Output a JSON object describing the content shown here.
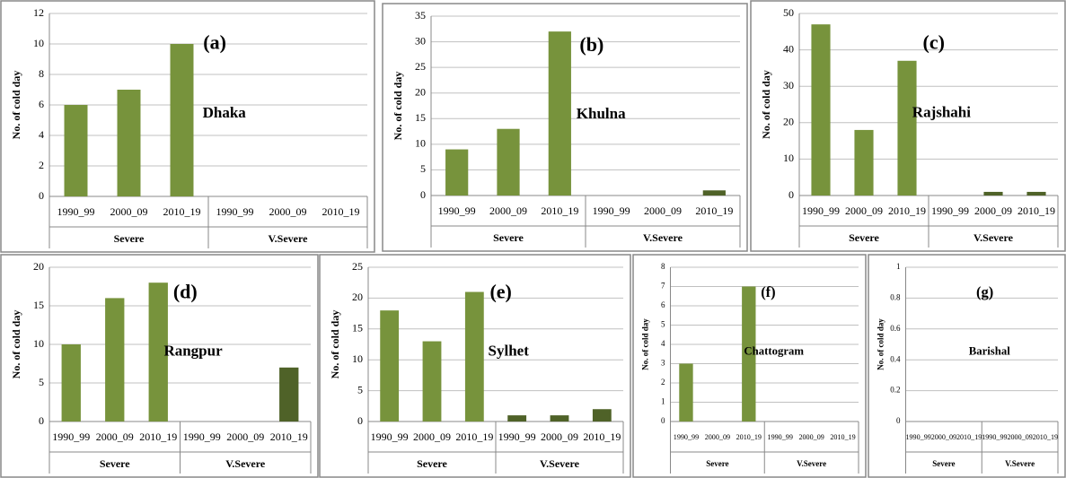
{
  "chart_data": [
    {
      "type": "bar",
      "label": "(a)",
      "region": "Dhaka",
      "y_label": "No. of cold day",
      "categories": [
        "1990_99",
        "2000_09",
        "2010_19",
        "1990_99",
        "2000_09",
        "2010_19"
      ],
      "groups": [
        "Severe",
        "V.Severe"
      ],
      "values": [
        6,
        7,
        10,
        0,
        0,
        0
      ],
      "colors": [
        "#77933c",
        "#4f6228"
      ],
      "ylim": [
        0,
        12
      ],
      "yticks": [
        0,
        2,
        4,
        6,
        8,
        10,
        12
      ],
      "grid": true
    },
    {
      "type": "bar",
      "label": "(b)",
      "region": "Khulna",
      "y_label": "No. of cold day",
      "categories": [
        "1990_99",
        "2000_09",
        "2010_19",
        "1990_99",
        "2000_09",
        "2010_19"
      ],
      "groups": [
        "Severe",
        "V.Severe"
      ],
      "values": [
        9,
        13,
        32,
        0,
        0,
        1
      ],
      "colors": [
        "#77933c",
        "#4f6228"
      ],
      "ylim": [
        0,
        35
      ],
      "yticks": [
        0,
        5,
        10,
        15,
        20,
        25,
        30,
        35
      ],
      "grid": true
    },
    {
      "type": "bar",
      "label": "(c)",
      "region": "Rajshahi",
      "y_label": "No. of cold day",
      "categories": [
        "1990_99",
        "2000_09",
        "2010_19",
        "1990_99",
        "2000_09",
        "2010_19"
      ],
      "groups": [
        "Severe",
        "V.Severe"
      ],
      "values": [
        47,
        18,
        37,
        0,
        1,
        1
      ],
      "colors": [
        "#77933c",
        "#4f6228"
      ],
      "ylim": [
        0,
        50
      ],
      "yticks": [
        0,
        10,
        20,
        30,
        40,
        50
      ],
      "grid": true
    },
    {
      "type": "bar",
      "label": "(d)",
      "region": "Rangpur",
      "y_label": "No. of cold day",
      "categories": [
        "1990_99",
        "2000_09",
        "2010_19",
        "1990_99",
        "2000_09",
        "2010_19"
      ],
      "groups": [
        "Severe",
        "V.Severe"
      ],
      "values": [
        10,
        16,
        18,
        0,
        0,
        7
      ],
      "colors": [
        "#77933c",
        "#4f6228"
      ],
      "ylim": [
        0,
        20
      ],
      "yticks": [
        0,
        5,
        10,
        15,
        20
      ],
      "grid": true
    },
    {
      "type": "bar",
      "label": "(e)",
      "region": "Sylhet",
      "y_label": "No. of cold day",
      "categories": [
        "1990_99",
        "2000_09",
        "2010_19",
        "1990_99",
        "2000_09",
        "2010_19"
      ],
      "groups": [
        "Severe",
        "V.Severe"
      ],
      "values": [
        18,
        13,
        21,
        1,
        1,
        2
      ],
      "colors": [
        "#77933c",
        "#4f6228"
      ],
      "ylim": [
        0,
        25
      ],
      "yticks": [
        0,
        5,
        10,
        15,
        20,
        25
      ],
      "grid": true
    },
    {
      "type": "bar",
      "label": "(f)",
      "region": "Chattogram",
      "y_label": "No. of cold day",
      "categories": [
        "1990_99",
        "2000_09",
        "2010_19",
        "1990_99",
        "2000_09",
        "2010_19"
      ],
      "groups": [
        "Severe",
        "V.Severe"
      ],
      "values": [
        3,
        0,
        7,
        0,
        0,
        0
      ],
      "colors": [
        "#77933c",
        "#4f6228"
      ],
      "ylim": [
        0,
        8
      ],
      "yticks": [
        0,
        1,
        2,
        3,
        4,
        5,
        6,
        7,
        8
      ],
      "grid": true
    },
    {
      "type": "bar",
      "label": "(g)",
      "region": "Barishal",
      "y_label": "No. of cold day",
      "categories": [
        "1990_99",
        "2000_09",
        "2010_19",
        "1990_99",
        "2000_09",
        "2010_19"
      ],
      "groups": [
        "Severe",
        "V.Severe"
      ],
      "values": [
        0,
        0,
        0,
        0,
        0,
        0
      ],
      "colors": [
        "#77933c",
        "#4f6228"
      ],
      "ylim": [
        0,
        1
      ],
      "yticks": [
        0,
        0.2,
        0.4,
        0.6,
        0.8,
        1
      ],
      "grid": true
    }
  ]
}
